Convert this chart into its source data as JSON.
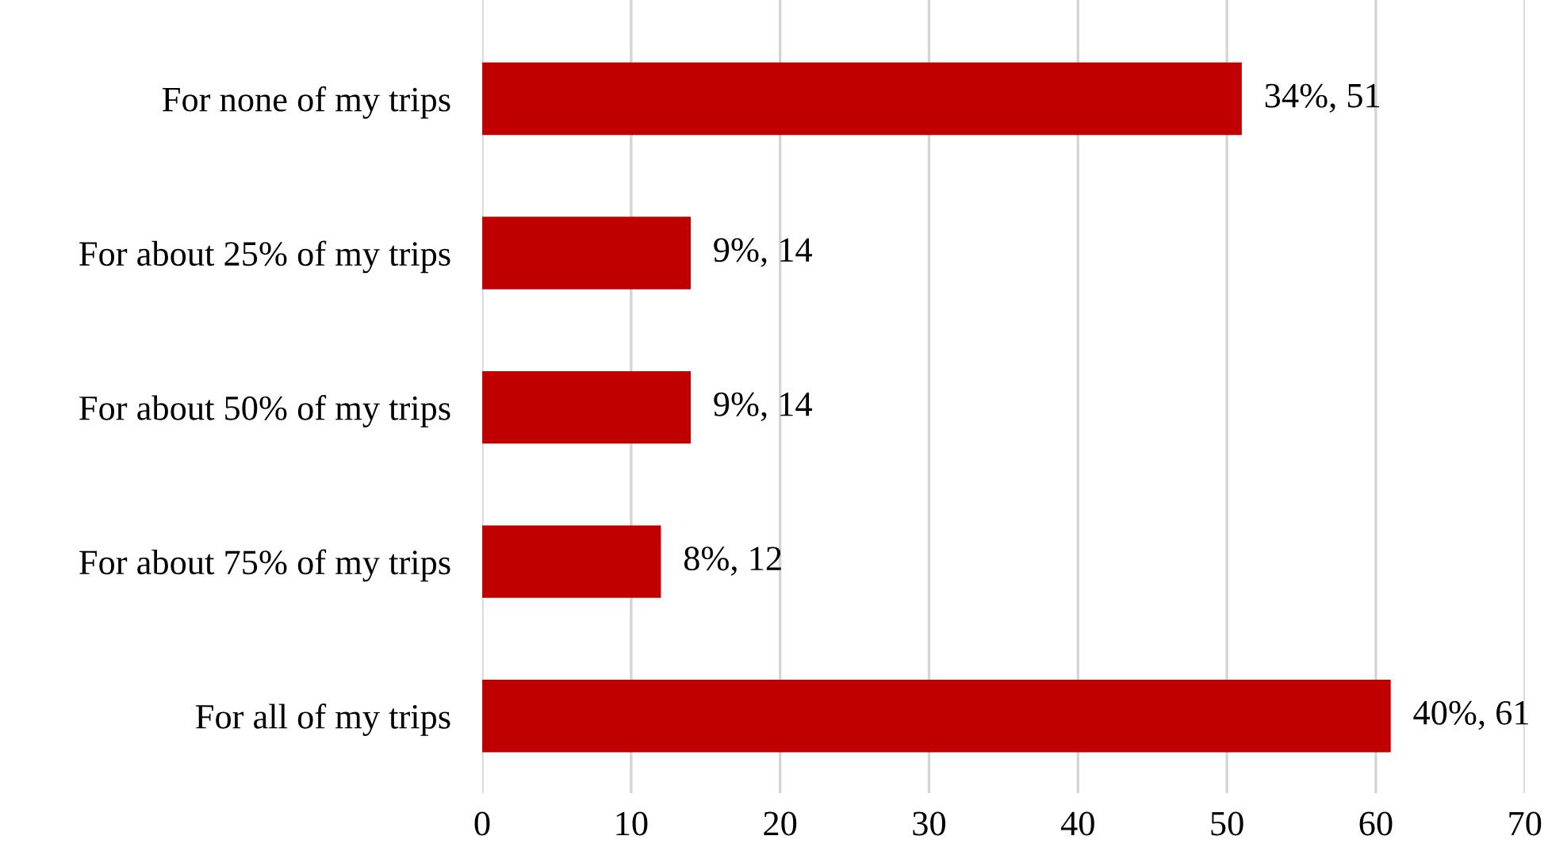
{
  "chart_data": {
    "type": "bar",
    "orientation": "horizontal",
    "categories": [
      "For none of my trips",
      "For about 25% of my trips",
      "For about 50% of my trips",
      "For about 75% of my trips",
      "For all of my trips"
    ],
    "values": [
      51,
      14,
      14,
      12,
      61
    ],
    "value_labels": [
      "34%, 51",
      "9%, 14",
      "9%, 14",
      "8%, 12",
      "40%, 61"
    ],
    "color": "#c00000",
    "xlim": [
      0,
      70
    ],
    "xticks": [
      0,
      10,
      20,
      30,
      40,
      50,
      60,
      70
    ],
    "grid": "x",
    "legend": false
  }
}
